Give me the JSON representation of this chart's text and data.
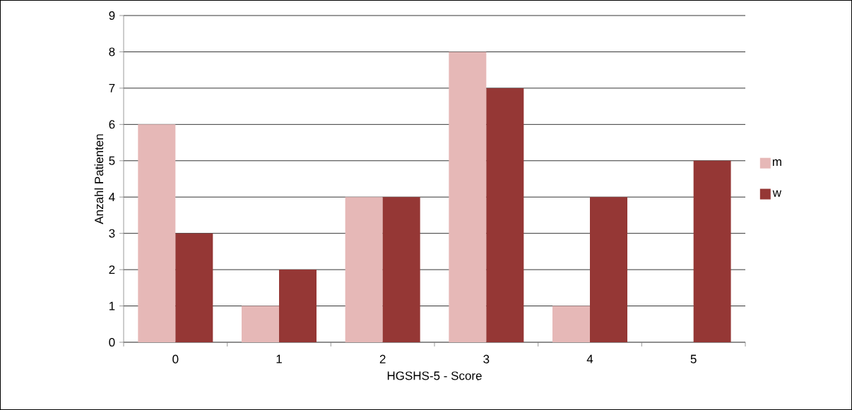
{
  "chart_data": {
    "type": "bar",
    "xlabel": "HGSHS-5 - Score",
    "ylabel": "Anzahl Patienten",
    "categories": [
      "0",
      "1",
      "2",
      "3",
      "4",
      "5"
    ],
    "series": [
      {
        "name": "m",
        "color": "#e6b8b7",
        "values": [
          6,
          1,
          4,
          8,
          1,
          0
        ]
      },
      {
        "name": "w",
        "color": "#953735",
        "values": [
          3,
          2,
          4,
          7,
          4,
          5
        ]
      }
    ],
    "ylim": [
      0,
      9
    ],
    "yticks": [
      0,
      1,
      2,
      3,
      4,
      5,
      6,
      7,
      8,
      9
    ],
    "grid": "y",
    "legend": "right"
  }
}
